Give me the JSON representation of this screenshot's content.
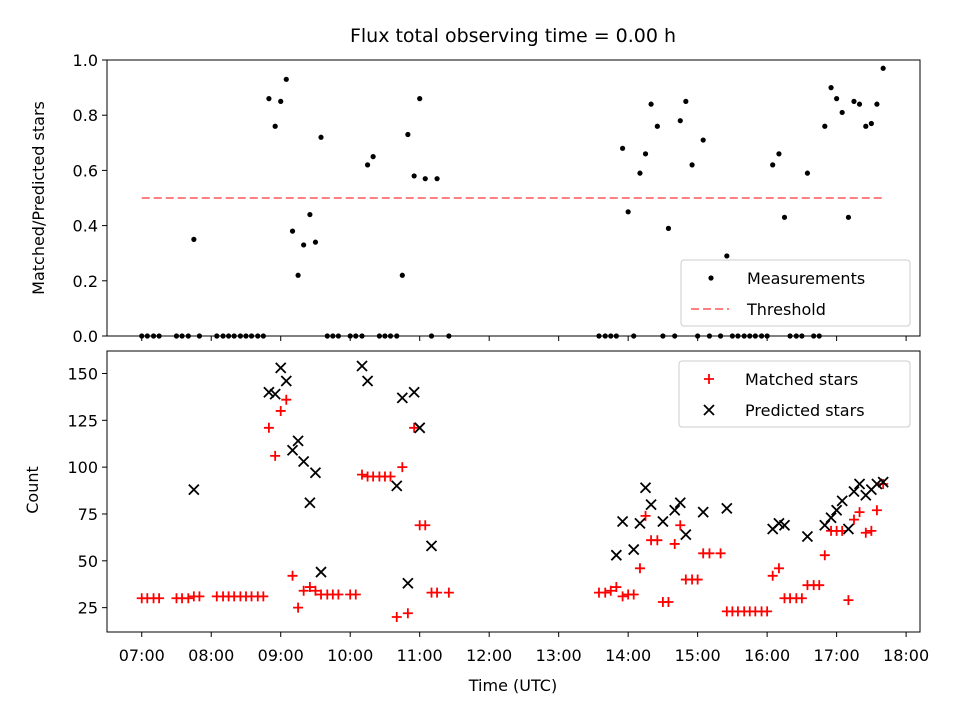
{
  "chart_data": [
    {
      "type": "scatter",
      "title": "Flux total observing time = 0.00 h",
      "xlabel": "",
      "ylabel": "Matched/Predicted stars",
      "xlim": [
        6.5,
        18.2
      ],
      "ylim": [
        0.0,
        1.0
      ],
      "yticks": [
        "0.0",
        "0.2",
        "0.4",
        "0.6",
        "0.8",
        "1.0"
      ],
      "legend_position": "lower-right",
      "threshold": {
        "name": "Threshold",
        "y": 0.5,
        "x_range": [
          7.0,
          17.67
        ],
        "color": "#ff8080"
      },
      "series": [
        {
          "name": "Measurements",
          "color": "#000000",
          "marker": "dot",
          "x": [
            7.0,
            7.08,
            7.17,
            7.25,
            7.5,
            7.58,
            7.67,
            7.75,
            7.83,
            8.08,
            8.17,
            8.25,
            8.33,
            8.42,
            8.5,
            8.58,
            8.67,
            8.75,
            8.83,
            8.92,
            9.0,
            9.08,
            9.17,
            9.25,
            9.33,
            9.42,
            9.5,
            9.58,
            9.67,
            9.75,
            9.83,
            10.0,
            10.08,
            10.17,
            10.25,
            10.33,
            10.42,
            10.5,
            10.58,
            10.67,
            10.75,
            10.83,
            10.92,
            11.0,
            11.08,
            11.17,
            11.25,
            11.42,
            13.58,
            13.67,
            13.75,
            13.83,
            13.92,
            14.0,
            14.08,
            14.17,
            14.25,
            14.33,
            14.42,
            14.5,
            14.58,
            14.67,
            14.75,
            14.83,
            14.92,
            15.0,
            15.08,
            15.17,
            15.33,
            15.42,
            15.5,
            15.58,
            15.67,
            15.75,
            15.83,
            15.92,
            16.0,
            16.08,
            16.17,
            16.25,
            16.33,
            16.42,
            16.5,
            16.58,
            16.67,
            16.75,
            16.83,
            16.92,
            17.0,
            17.08,
            17.17,
            17.25,
            17.33,
            17.42,
            17.5,
            17.58,
            17.67
          ],
          "y": [
            0.0,
            0.0,
            0.0,
            0.0,
            0.0,
            0.0,
            0.0,
            0.35,
            0.0,
            0.0,
            0.0,
            0.0,
            0.0,
            0.0,
            0.0,
            0.0,
            0.0,
            0.0,
            0.86,
            0.76,
            0.85,
            0.93,
            0.38,
            0.22,
            0.33,
            0.44,
            0.34,
            0.72,
            0.0,
            0.0,
            0.0,
            0.0,
            0.0,
            0.0,
            0.62,
            0.65,
            0.0,
            0.0,
            0.0,
            0.0,
            0.22,
            0.73,
            0.58,
            0.86,
            0.57,
            0.0,
            0.57,
            0.0,
            0.0,
            0.0,
            0.0,
            0.0,
            0.68,
            0.45,
            0.0,
            0.59,
            0.66,
            0.84,
            0.76,
            0.0,
            0.39,
            0.0,
            0.78,
            0.85,
            0.62,
            0.0,
            0.71,
            0.0,
            0.0,
            0.29,
            0.0,
            0.0,
            0.0,
            0.0,
            0.0,
            0.0,
            0.0,
            0.62,
            0.66,
            0.43,
            0.0,
            0.0,
            0.0,
            0.59,
            0.0,
            0.0,
            0.76,
            0.9,
            0.86,
            0.81,
            0.43,
            0.85,
            0.84,
            0.76,
            0.77,
            0.84,
            0.97
          ]
        }
      ]
    },
    {
      "type": "scatter",
      "title": "",
      "xlabel": "Time (UTC)",
      "ylabel": "Count",
      "xlim": [
        6.5,
        18.2
      ],
      "ylim": [
        12,
        162
      ],
      "yticks": [
        "25",
        "50",
        "75",
        "100",
        "125",
        "150"
      ],
      "xticks": [
        "07:00",
        "08:00",
        "09:00",
        "10:00",
        "11:00",
        "12:00",
        "13:00",
        "14:00",
        "15:00",
        "16:00",
        "17:00",
        "18:00"
      ],
      "legend_position": "upper-right",
      "series": [
        {
          "name": "Matched stars",
          "color": "#ff0000",
          "marker": "plus",
          "x": [
            7.0,
            7.08,
            7.17,
            7.25,
            7.5,
            7.58,
            7.67,
            7.75,
            7.83,
            8.08,
            8.17,
            8.25,
            8.33,
            8.42,
            8.5,
            8.58,
            8.67,
            8.75,
            8.83,
            8.92,
            9.0,
            9.08,
            9.17,
            9.25,
            9.33,
            9.42,
            9.5,
            9.58,
            9.67,
            9.75,
            9.83,
            10.0,
            10.08,
            10.17,
            10.25,
            10.33,
            10.42,
            10.5,
            10.58,
            10.67,
            10.75,
            10.83,
            10.92,
            11.0,
            11.08,
            11.17,
            11.25,
            11.42,
            13.58,
            13.67,
            13.75,
            13.83,
            13.92,
            14.0,
            14.08,
            14.17,
            14.25,
            14.33,
            14.42,
            14.5,
            14.58,
            14.67,
            14.75,
            14.83,
            14.92,
            15.0,
            15.08,
            15.17,
            15.33,
            15.42,
            15.5,
            15.58,
            15.67,
            15.75,
            15.83,
            15.92,
            16.0,
            16.08,
            16.17,
            16.25,
            16.33,
            16.42,
            16.5,
            16.58,
            16.67,
            16.75,
            16.83,
            16.92,
            17.0,
            17.08,
            17.17,
            17.25,
            17.33,
            17.42,
            17.5,
            17.58,
            17.67
          ],
          "y": [
            30,
            30,
            30,
            30,
            30,
            30,
            30,
            31,
            31,
            31,
            31,
            31,
            31,
            31,
            31,
            31,
            31,
            31,
            121,
            106,
            130,
            136,
            42,
            25,
            34,
            36,
            34,
            32,
            32,
            32,
            32,
            32,
            32,
            96,
            95,
            95,
            95,
            95,
            95,
            20,
            100,
            22,
            121,
            69,
            69,
            33,
            33,
            33,
            33,
            33,
            34,
            36,
            31,
            32,
            32,
            46,
            74,
            61,
            61,
            28,
            28,
            59,
            69,
            40,
            40,
            40,
            54,
            54,
            54,
            23,
            23,
            23,
            23,
            23,
            23,
            23,
            23,
            42,
            46,
            30,
            30,
            30,
            30,
            37,
            37,
            37,
            53,
            66,
            66,
            66,
            29,
            72,
            76,
            65,
            66,
            77,
            91
          ]
        },
        {
          "name": "Predicted stars",
          "color": "#000000",
          "marker": "x",
          "x": [
            7.75,
            8.83,
            8.92,
            9.0,
            9.08,
            9.17,
            9.25,
            9.33,
            9.42,
            9.5,
            9.58,
            10.17,
            10.25,
            10.67,
            10.75,
            10.83,
            10.92,
            11.0,
            11.17,
            13.83,
            13.92,
            14.08,
            14.17,
            14.25,
            14.33,
            14.5,
            14.67,
            14.75,
            14.83,
            15.08,
            15.42,
            16.08,
            16.17,
            16.25,
            16.58,
            16.83,
            16.92,
            17.0,
            17.08,
            17.17,
            17.25,
            17.33,
            17.42,
            17.5,
            17.58,
            17.67
          ],
          "y": [
            88,
            140,
            139,
            153,
            146,
            109,
            114,
            103,
            81,
            97,
            44,
            154,
            146,
            90,
            137,
            38,
            140,
            121,
            58,
            53,
            71,
            56,
            70,
            89,
            80,
            71,
            77,
            81,
            64,
            76,
            78,
            67,
            70,
            69,
            63,
            69,
            73,
            77,
            82,
            67,
            87,
            91,
            85,
            88,
            91,
            92
          ]
        }
      ]
    }
  ]
}
